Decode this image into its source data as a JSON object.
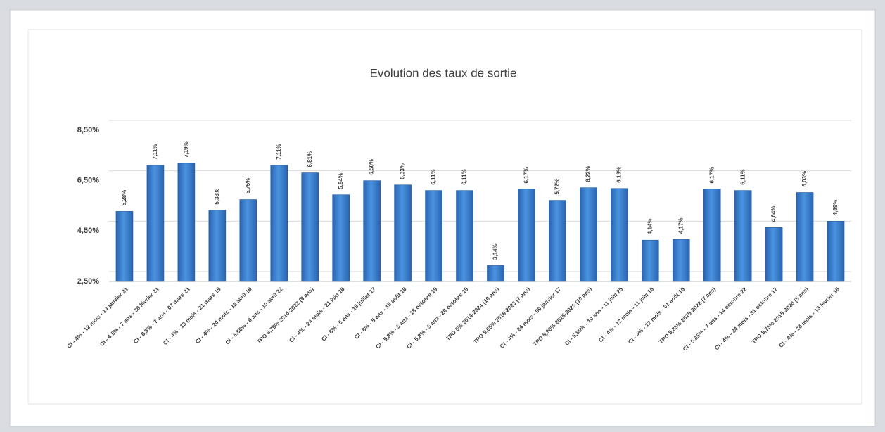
{
  "chart_data": {
    "type": "bar",
    "title": "Evolution des taux de sortie",
    "categories": [
      "CI - 4% - 12 mois - 14 janvier 21",
      "CI - 6,5% - 7 ans - 28 février 21",
      "CI - 6,5% - 7 ans - 07 mars 21",
      "CI - 4% - 13 mois - 21 mars 15",
      "CI - 4% - 24 mois - 12 avril 16",
      "CI - 6,50% - 8 ans - 10 avril 22",
      "TPO 6,75% 2014-2022 (8 ans)",
      "CI - 4% - 24 mois - 21 juin 16",
      "CI - 6% - 5 ans - 15 juillet 17",
      "CI - 6% - 5 ans - 15 août 18",
      "CI - 5,8% - 5 ans - 18 octobre 19",
      "CI - 5,8% - 5 ans - 20 octobre 19",
      "TPO 5% 2014-2024 (10 ans)",
      "TPO 5,65% 2016-2023 (7 ans)",
      "CI - 4% - 24 mois - 09 janvier 17",
      "TPO 5,90% 2015-2025 (10 ans)",
      "CI - 5,80% - 10 ans - 11 juin 25",
      "CI - 4% - 12 mois - 11 juin 16",
      "CI - 4% - 12 mois - 01 août 16",
      "TPO 5,85% 2015-2022 (7 ans)",
      "CI - 5,85% - 7 ans - 14 octobre 22",
      "CI - 4% - 24 mois - 31 octobre 17",
      "TPO 5,75% 2015-2020 (5 ans)",
      "CI - 4% - 24 mois - 13 février 18"
    ],
    "values": [
      5.28,
      7.11,
      7.19,
      5.33,
      5.75,
      7.11,
      6.81,
      5.94,
      6.5,
      6.33,
      6.11,
      6.11,
      3.14,
      6.17,
      5.72,
      6.22,
      6.19,
      4.14,
      4.17,
      6.17,
      6.11,
      4.64,
      6.03,
      4.89
    ],
    "value_labels": [
      "5,28%",
      "7,11%",
      "7,19%",
      "5,33%",
      "5,75%",
      "7,11%",
      "6,81%",
      "5,94%",
      "6,50%",
      "6,33%",
      "6,11%",
      "6,11%",
      "3,14%",
      "6,17%",
      "5,72%",
      "6,22%",
      "6,19%",
      "4,14%",
      "4,17%",
      "6,17%",
      "6,11%",
      "4,64%",
      "6,03%",
      "4,89%"
    ],
    "color": "#3a80d2",
    "ylim": [
      2.5,
      8.5
    ],
    "yticks": [
      {
        "value": 2.5,
        "label": "2,50%"
      },
      {
        "value": 4.5,
        "label": "4,50%"
      },
      {
        "value": 6.5,
        "label": "6,50%"
      },
      {
        "value": 8.5,
        "label": "8,50%"
      }
    ],
    "grid": true
  }
}
